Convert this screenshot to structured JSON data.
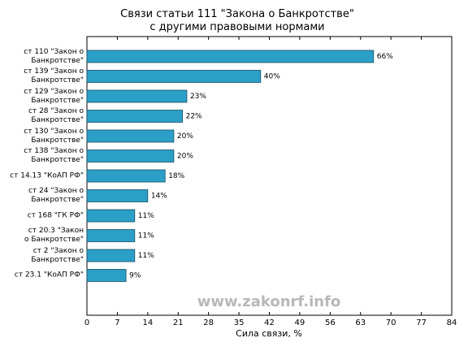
{
  "chart_data": {
    "type": "barh",
    "title": "Связи статьи 111 \"Закона о Банкротстве\"\nс другими правовыми нормами",
    "xlabel": "Сила связи, %",
    "annotation": "www.zakonrf.info",
    "categories": [
      "ст 110 \"Закон о\nБанкротстве\"",
      "ст 139 \"Закон о\nБанкротстве\"",
      "ст 129 \"Закон о\nБанкротстве\"",
      "ст 28 \"Закон о\nБанкротстве\"",
      "ст 130 \"Закон о\nБанкротстве\"",
      "ст 138 \"Закон о\nБанкротстве\"",
      "ст 14.13 \"КоАП РФ\"",
      "ст 24 \"Закон о\nБанкротстве\"",
      "ст 168 \"ГК РФ\"",
      "ст 20.3 \"Закон\nо Банкротстве\"",
      "ст 2 \"Закон о\nБанкротстве\"",
      "ст 23.1 \"КоАП РФ\""
    ],
    "values": [
      66,
      40,
      23,
      22,
      20,
      20,
      18,
      14,
      11,
      11,
      11,
      9
    ],
    "value_labels": [
      "66%",
      "40%",
      "23%",
      "22%",
      "20%",
      "20%",
      "18%",
      "14%",
      "11%",
      "11%",
      "11%",
      "9%"
    ],
    "color": "#2b9fc7",
    "xlim": [
      0,
      84
    ],
    "xticks": [
      0,
      7,
      14,
      21,
      28,
      35,
      42,
      49,
      56,
      63,
      70,
      77,
      84
    ]
  }
}
